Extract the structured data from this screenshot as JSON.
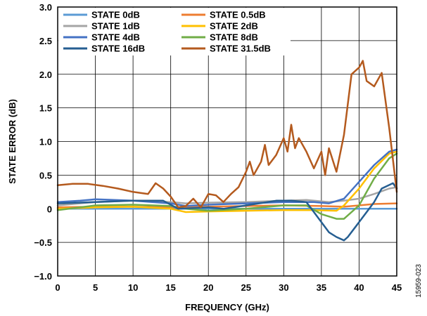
{
  "chart_data": {
    "type": "line",
    "title": "",
    "xlabel": "FREQUENCY (GHz)",
    "ylabel": "STATE ERROR (dB)",
    "xlim": [
      0,
      45
    ],
    "ylim": [
      -1.0,
      3.0
    ],
    "x_ticks": [
      "0",
      "5",
      "10",
      "15",
      "20",
      "25",
      "30",
      "35",
      "40",
      "45"
    ],
    "y_ticks": [
      "−1.0",
      "−0.5",
      "0",
      "0.5",
      "1.0",
      "1.5",
      "2.0",
      "2.5",
      "3.0"
    ],
    "grid": true,
    "legend_position": "top-left",
    "figure_id": "15959-023",
    "series": [
      {
        "name": "STATE 0dB",
        "color": "#5b9bd5",
        "x": [
          0,
          5,
          10,
          15,
          20,
          25,
          30,
          35,
          40,
          42,
          45
        ],
        "values": [
          0,
          0,
          0,
          0,
          0,
          0,
          0,
          0,
          0,
          0,
          0
        ]
      },
      {
        "name": "STATE 0.5dB",
        "color": "#ed7d31",
        "x": [
          0,
          5,
          10,
          15,
          20,
          25,
          30,
          35,
          38,
          40,
          42,
          45
        ],
        "values": [
          0.02,
          0.03,
          0.03,
          0.02,
          0.03,
          0.04,
          0.05,
          0.04,
          0.03,
          0.05,
          0.07,
          0.08
        ]
      },
      {
        "name": "STATE 1dB",
        "color": "#a5a5a5",
        "x": [
          0,
          5,
          10,
          15,
          17,
          20,
          25,
          30,
          33,
          36,
          38,
          40,
          42,
          44,
          45
        ],
        "values": [
          0.05,
          0.1,
          0.12,
          0.1,
          0.08,
          0.09,
          0.1,
          0.12,
          0.13,
          0.1,
          0.12,
          0.15,
          0.22,
          0.3,
          0.32
        ]
      },
      {
        "name": "STATE 2dB",
        "color": "#ffc000",
        "x": [
          0,
          5,
          10,
          15,
          17,
          20,
          25,
          30,
          34,
          37,
          38,
          40,
          42,
          44,
          45
        ],
        "values": [
          0.0,
          0.02,
          0.03,
          0.0,
          -0.05,
          -0.04,
          -0.03,
          -0.02,
          -0.02,
          -0.03,
          0.05,
          0.3,
          0.6,
          0.82,
          0.85
        ]
      },
      {
        "name": "STATE 4dB",
        "color": "#4472c4",
        "x": [
          0,
          3,
          5,
          10,
          15,
          17,
          20,
          25,
          30,
          34,
          36,
          38,
          40,
          42,
          44,
          45
        ],
        "values": [
          0.1,
          0.12,
          0.14,
          0.12,
          0.08,
          0.04,
          0.06,
          0.08,
          0.1,
          0.1,
          0.08,
          0.15,
          0.4,
          0.65,
          0.85,
          0.88
        ]
      },
      {
        "name": "STATE 8dB",
        "color": "#70ad47",
        "x": [
          0,
          5,
          10,
          15,
          17,
          20,
          25,
          30,
          33,
          35,
          37,
          38,
          40,
          42,
          44,
          45
        ],
        "values": [
          -0.02,
          0.05,
          0.06,
          0.04,
          0.0,
          -0.03,
          0.0,
          0.05,
          0.05,
          -0.08,
          -0.15,
          -0.15,
          0.05,
          0.45,
          0.75,
          0.82
        ]
      },
      {
        "name": "STATE 16dB",
        "color": "#255e91",
        "x": [
          0,
          5,
          10,
          14,
          16,
          20,
          22,
          25,
          29,
          31,
          33,
          34,
          35,
          36,
          37,
          38,
          38.5,
          40,
          42,
          43,
          44.5,
          45
        ],
        "values": [
          0.08,
          0.1,
          0.12,
          0.12,
          0.0,
          0.02,
          0.0,
          0.05,
          0.12,
          0.12,
          0.1,
          -0.05,
          -0.2,
          -0.35,
          -0.42,
          -0.47,
          -0.42,
          -0.2,
          0.1,
          0.3,
          0.38,
          0.3
        ]
      },
      {
        "name": "STATE 31.5dB",
        "color": "#b45a1e",
        "x": [
          0,
          2,
          4,
          6,
          8,
          10,
          12,
          13,
          14,
          15,
          16,
          17,
          18,
          19,
          20,
          21,
          22,
          23,
          24,
          25,
          25.5,
          26,
          27,
          27.5,
          28,
          29,
          30,
          30.5,
          31,
          31.5,
          32,
          33,
          34,
          35,
          35.5,
          36,
          37,
          38,
          39,
          40,
          40.5,
          41,
          42,
          43,
          44,
          45
        ],
        "values": [
          0.35,
          0.37,
          0.37,
          0.34,
          0.3,
          0.25,
          0.22,
          0.38,
          0.3,
          0.18,
          0.02,
          0.04,
          0.15,
          0.02,
          0.22,
          0.2,
          0.1,
          0.22,
          0.32,
          0.55,
          0.7,
          0.5,
          0.7,
          0.95,
          0.65,
          0.8,
          1.05,
          0.85,
          1.25,
          0.9,
          1.05,
          0.85,
          0.6,
          0.85,
          0.5,
          0.9,
          0.55,
          1.1,
          2.0,
          2.1,
          2.2,
          1.9,
          1.82,
          2.02,
          1.2,
          0.25
        ]
      }
    ]
  }
}
